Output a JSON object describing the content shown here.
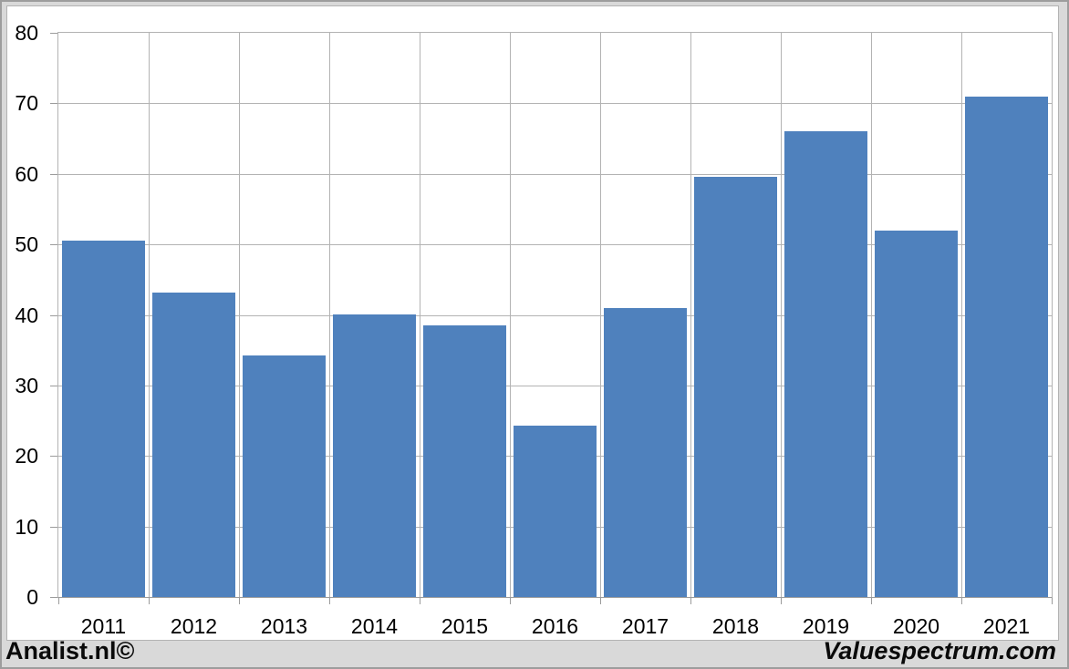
{
  "chart_data": {
    "type": "bar",
    "title": "",
    "xlabel": "",
    "ylabel": "",
    "categories": [
      "2011",
      "2012",
      "2013",
      "2014",
      "2015",
      "2016",
      "2017",
      "2018",
      "2019",
      "2020",
      "2021"
    ],
    "values": [
      50.5,
      43.2,
      34.3,
      40,
      38.5,
      24.3,
      41,
      59.6,
      66,
      52,
      71
    ],
    "ylim": [
      0,
      80
    ],
    "ytick_step": 10,
    "yticks": [
      0,
      10,
      20,
      30,
      40,
      50,
      60,
      70,
      80
    ],
    "grid": "horizontal and vertical gridlines on",
    "legend": "none",
    "bar_color": "#4F81BD",
    "gridline_color": "#b3b3b3",
    "axis_color": "#9b9b9b",
    "plot_bg": "#ffffff",
    "frame_bg": "#d9d9d9"
  },
  "footer": {
    "left_text": "Analist.nl©",
    "right_text": "Valuespectrum.com"
  }
}
